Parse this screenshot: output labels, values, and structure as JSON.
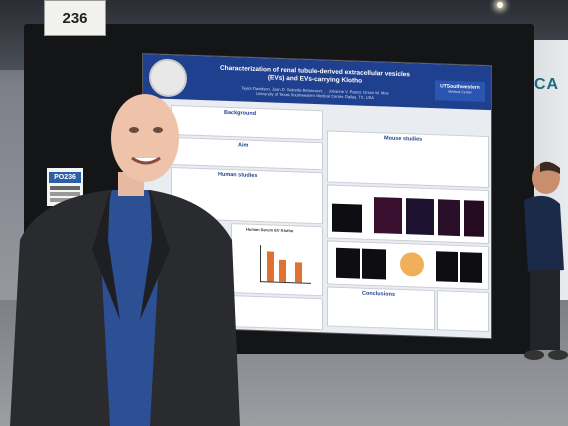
{
  "board": {
    "number": "236",
    "booth_label": "PO236"
  },
  "poster": {
    "title": "Characterization of renal tubule-derived extracellular vesicles (EVs) and EVs-carrying Klotho",
    "authors": "Taylor Davidson, Juan D. Salcedo-Betancourt, ... Johanne V. Pastor, Orson W. Moe",
    "affiliation": "University of Texas Southwestern Medical Center, Dallas, TX, USA",
    "logo_text": "UTSouthwestern",
    "logo_sub": "Medical Center",
    "sections": {
      "background": "Background",
      "aim": "Aim",
      "human_studies": "Human studies",
      "mouse_studies": "Mouse studies",
      "conclusions": "Conclusions"
    },
    "figure_label": "Human Serum EV Klotho"
  },
  "venue_sign": "CA",
  "colors": {
    "poster_header": "#1f3f8f",
    "chart_bars": "#e0722f",
    "jacket": "#2a2b2e",
    "shirt": "#2d4f93"
  }
}
